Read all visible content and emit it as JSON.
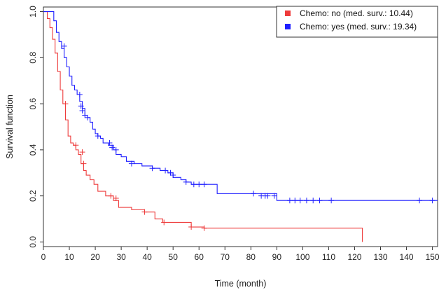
{
  "chart_data": {
    "type": "line",
    "subtype": "kaplan-meier step plot",
    "xlabel": "Time (month)",
    "ylabel": "Survival function",
    "xlim": [
      0,
      152
    ],
    "ylim": [
      -0.02,
      1.02
    ],
    "x_ticks": [
      0,
      10,
      20,
      30,
      40,
      50,
      60,
      70,
      80,
      90,
      100,
      110,
      120,
      130,
      140,
      150
    ],
    "y_ticks": [
      0.0,
      0.2,
      0.4,
      0.6,
      0.8,
      1.0
    ],
    "y_tick_labels": [
      "0.0",
      "0.2",
      "0.4",
      "0.6",
      "0.8",
      "1.0"
    ],
    "grid": false,
    "legend_position": "top-right",
    "series": [
      {
        "name": "Chemo: no (med. surv.: 10.44)",
        "color": "#ee3b3b",
        "x": [
          0,
          1.5,
          2.5,
          3.5,
          4.5,
          5.5,
          6.5,
          7.5,
          8.5,
          9.5,
          10.5,
          11.5,
          12.5,
          13.5,
          14.5,
          15.5,
          16.5,
          18,
          19.5,
          21,
          24,
          27,
          29,
          34,
          39,
          43,
          46,
          57,
          62,
          123
        ],
        "y": [
          1.0,
          0.97,
          0.93,
          0.88,
          0.82,
          0.74,
          0.66,
          0.6,
          0.53,
          0.46,
          0.43,
          0.42,
          0.4,
          0.38,
          0.34,
          0.31,
          0.29,
          0.27,
          0.25,
          0.22,
          0.2,
          0.18,
          0.15,
          0.14,
          0.13,
          0.1,
          0.085,
          0.065,
          0.06,
          0.0
        ],
        "censored": [
          {
            "x": 8.5,
            "y": 0.6
          },
          {
            "x": 12.5,
            "y": 0.42
          },
          {
            "x": 15,
            "y": 0.39
          },
          {
            "x": 15.5,
            "y": 0.34
          },
          {
            "x": 26,
            "y": 0.2
          },
          {
            "x": 28,
            "y": 0.19
          },
          {
            "x": 39,
            "y": 0.13
          },
          {
            "x": 46.5,
            "y": 0.085
          },
          {
            "x": 57,
            "y": 0.065
          },
          {
            "x": 62,
            "y": 0.06
          }
        ]
      },
      {
        "name": "Chemo: yes (med. surv.: 19.34)",
        "color": "#1f1fff",
        "x": [
          0,
          4,
          5,
          6,
          7,
          8,
          9,
          10,
          11,
          12,
          13,
          14,
          15,
          16,
          17,
          18,
          19,
          20,
          21,
          22,
          23,
          25,
          27,
          28,
          30,
          32,
          35,
          38,
          42,
          45,
          48,
          50,
          53,
          55,
          57,
          60,
          67,
          90,
          152
        ],
        "y": [
          1.0,
          0.96,
          0.91,
          0.87,
          0.84,
          0.8,
          0.76,
          0.72,
          0.68,
          0.66,
          0.64,
          0.61,
          0.58,
          0.55,
          0.54,
          0.52,
          0.49,
          0.47,
          0.46,
          0.45,
          0.43,
          0.42,
          0.4,
          0.38,
          0.37,
          0.35,
          0.34,
          0.33,
          0.32,
          0.31,
          0.3,
          0.28,
          0.27,
          0.26,
          0.25,
          0.25,
          0.21,
          0.18,
          0.18
        ],
        "censored": [
          {
            "x": 8,
            "y": 0.85
          },
          {
            "x": 14,
            "y": 0.64
          },
          {
            "x": 14.5,
            "y": 0.59
          },
          {
            "x": 15,
            "y": 0.57
          },
          {
            "x": 16,
            "y": 0.55
          },
          {
            "x": 17,
            "y": 0.54
          },
          {
            "x": 21,
            "y": 0.46
          },
          {
            "x": 25.5,
            "y": 0.43
          },
          {
            "x": 26.5,
            "y": 0.41
          },
          {
            "x": 28,
            "y": 0.4
          },
          {
            "x": 34,
            "y": 0.34
          },
          {
            "x": 42,
            "y": 0.32
          },
          {
            "x": 47,
            "y": 0.31
          },
          {
            "x": 49,
            "y": 0.3
          },
          {
            "x": 50,
            "y": 0.29
          },
          {
            "x": 55,
            "y": 0.26
          },
          {
            "x": 58,
            "y": 0.25
          },
          {
            "x": 60,
            "y": 0.25
          },
          {
            "x": 62,
            "y": 0.25
          },
          {
            "x": 81,
            "y": 0.21
          },
          {
            "x": 84,
            "y": 0.2
          },
          {
            "x": 85.5,
            "y": 0.2
          },
          {
            "x": 86.5,
            "y": 0.2
          },
          {
            "x": 89,
            "y": 0.2
          },
          {
            "x": 95,
            "y": 0.18
          },
          {
            "x": 97,
            "y": 0.18
          },
          {
            "x": 99,
            "y": 0.18
          },
          {
            "x": 101.5,
            "y": 0.18
          },
          {
            "x": 104,
            "y": 0.18
          },
          {
            "x": 106.5,
            "y": 0.18
          },
          {
            "x": 111,
            "y": 0.18
          },
          {
            "x": 145,
            "y": 0.18
          },
          {
            "x": 150,
            "y": 0.18
          }
        ]
      }
    ]
  }
}
